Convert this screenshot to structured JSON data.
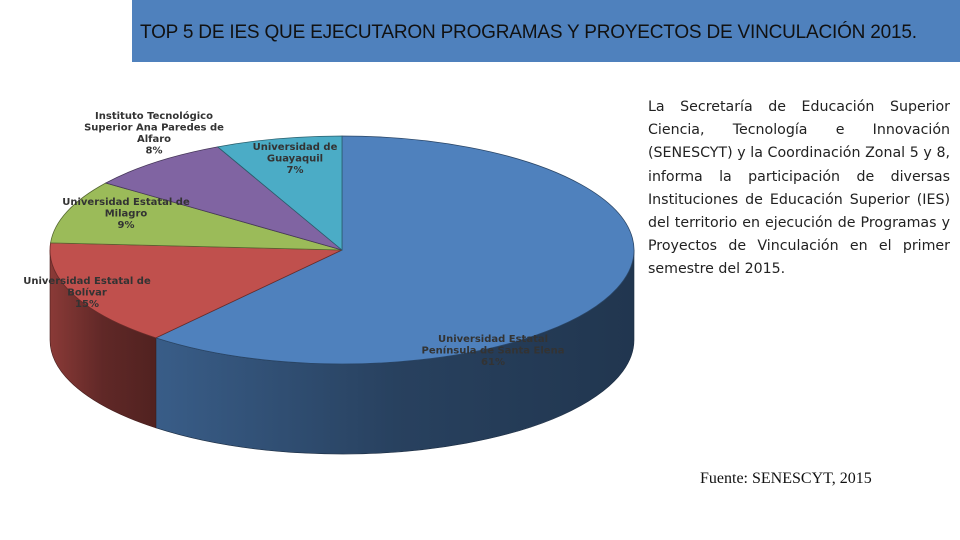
{
  "title": "TOP 5 DE IES QUE EJECUTARON PROGRAMAS Y PROYECTOS DE VINCULACIÓN 2015.",
  "description": "La Secretaría de Educación Superior Ciencia, Tecnología e Innovación (SENESCYT) y la Coordinación Zonal 5 y 8, informa la participación de diversas Instituciones de Educación Superior (IES) del territorio en ejecución de Programas y Proyectos de Vinculación en el primer semestre del 2015.",
  "source": "Fuente: SENESCYT, 2015",
  "colors": {
    "title_bar": "#4f81bd"
  },
  "chart_data": {
    "type": "pie",
    "title": "",
    "slices": [
      {
        "name": "Universidad Estatal Península de Santa Elena",
        "label_lines": [
          "Universidad Estatal",
          "Península de Santa Elena",
          "61%"
        ],
        "value": 61,
        "color": "#4f81bd"
      },
      {
        "name": "Universidad Estatal de Bolívar",
        "label_lines": [
          "Universidad Estatal de",
          "Bolívar",
          "15%"
        ],
        "value": 15,
        "color": "#c0504d"
      },
      {
        "name": "Universidad Estatal de Milagro",
        "label_lines": [
          "Universidad Estatal de",
          "Milagro",
          "9%"
        ],
        "value": 9,
        "color": "#9bbb59"
      },
      {
        "name": "Instituto Tecnológico Superior Ana Paredes de Alfaro",
        "label_lines": [
          "Instituto Tecnológico",
          "Superior Ana Paredes de",
          "Alfaro",
          "8%"
        ],
        "value": 8,
        "color": "#8064a2"
      },
      {
        "name": "Universidad de Guayaquil",
        "label_lines": [
          "Universidad de",
          "Guayaquil",
          "7%"
        ],
        "value": 7,
        "color": "#4bacc6"
      }
    ]
  }
}
